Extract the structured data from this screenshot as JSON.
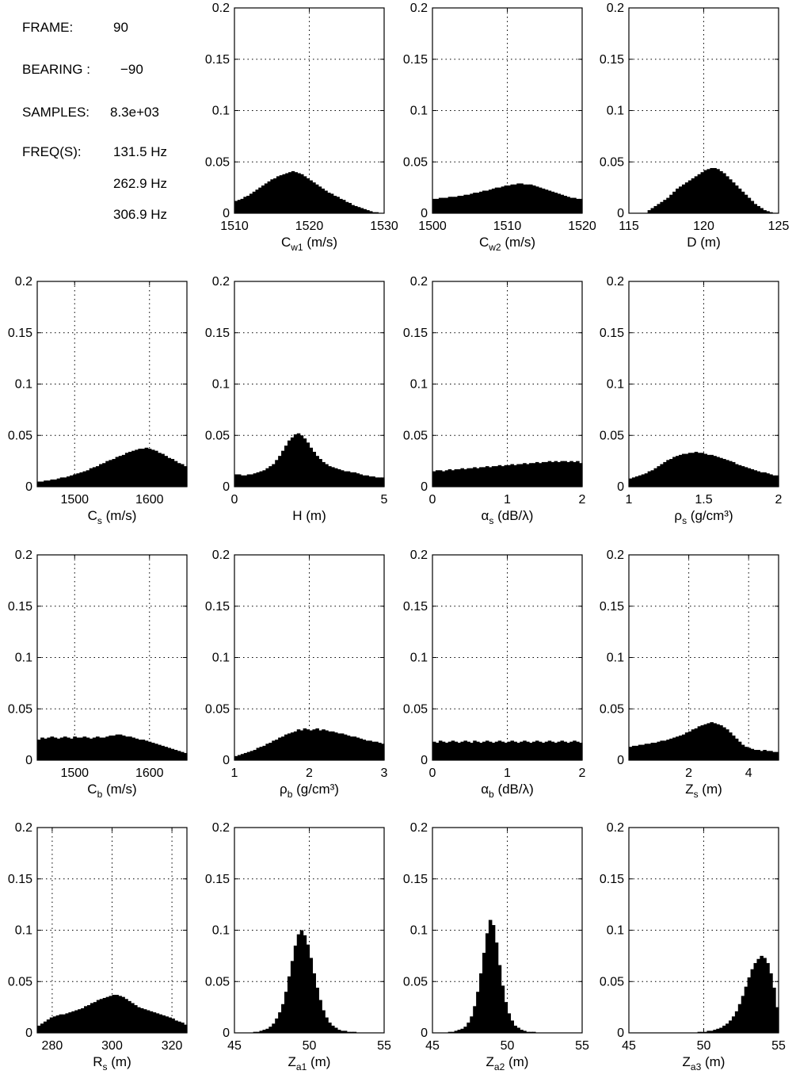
{
  "info": {
    "frame_label": "FRAME:",
    "frame_value": "90",
    "bearing_label": "BEARING :",
    "bearing_value": "−90",
    "samples_label": "SAMPLES:",
    "samples_value": "8.3e+03",
    "freq_label": "FREQ(S):",
    "freqs": [
      "131.5 Hz",
      "262.9 Hz",
      "306.9 Hz"
    ]
  },
  "chart_data": [
    {
      "type": "bar",
      "sym": "C",
      "sub": "w1",
      "sup": "",
      "unit": "(m/s)",
      "xlim": [
        1510,
        1530
      ],
      "xticks": [
        1510,
        1520,
        1530
      ],
      "ylim": [
        0,
        0.2
      ],
      "yticks": [
        "0",
        "0.05",
        "0.1",
        "0.15",
        "0.2"
      ],
      "grid": true,
      "values": [
        0.012,
        0.013,
        0.014,
        0.016,
        0.017,
        0.019,
        0.021,
        0.023,
        0.025,
        0.027,
        0.029,
        0.031,
        0.033,
        0.034,
        0.036,
        0.037,
        0.038,
        0.039,
        0.04,
        0.041,
        0.04,
        0.039,
        0.038,
        0.036,
        0.034,
        0.032,
        0.03,
        0.028,
        0.026,
        0.024,
        0.022,
        0.02,
        0.019,
        0.017,
        0.016,
        0.014,
        0.013,
        0.011,
        0.01,
        0.008,
        0.007,
        0.006,
        0.005,
        0.004,
        0.003,
        0.002,
        0.001,
        0.001,
        0.0,
        0.0
      ]
    },
    {
      "type": "bar",
      "sym": "C",
      "sub": "w2",
      "sup": "",
      "unit": "(m/s)",
      "xlim": [
        1500,
        1520
      ],
      "xticks": [
        1500,
        1510,
        1520
      ],
      "ylim": [
        0,
        0.2
      ],
      "yticks": [
        "0",
        "0.05",
        "0.1",
        "0.15",
        "0.2"
      ],
      "grid": true,
      "values": [
        0.014,
        0.014,
        0.015,
        0.015,
        0.015,
        0.016,
        0.016,
        0.016,
        0.017,
        0.017,
        0.018,
        0.018,
        0.019,
        0.02,
        0.02,
        0.021,
        0.022,
        0.022,
        0.023,
        0.024,
        0.025,
        0.025,
        0.026,
        0.027,
        0.027,
        0.028,
        0.028,
        0.029,
        0.029,
        0.028,
        0.028,
        0.028,
        0.027,
        0.026,
        0.025,
        0.024,
        0.023,
        0.022,
        0.021,
        0.02,
        0.019,
        0.018,
        0.017,
        0.016,
        0.015,
        0.015,
        0.014,
        0.014
      ]
    },
    {
      "type": "bar",
      "sym": "D",
      "sub": "",
      "sup": "",
      "unit": "(m)",
      "xlim": [
        115,
        125
      ],
      "xticks": [
        115,
        120,
        125
      ],
      "ylim": [
        0,
        0.2
      ],
      "yticks": [
        "0",
        "0.05",
        "0.1",
        "0.15",
        "0.2"
      ],
      "grid": true,
      "values": [
        0.0,
        0.0,
        0.0,
        0.0,
        0.0,
        0.0,
        0.003,
        0.005,
        0.007,
        0.009,
        0.011,
        0.013,
        0.015,
        0.018,
        0.021,
        0.024,
        0.026,
        0.028,
        0.03,
        0.032,
        0.034,
        0.036,
        0.038,
        0.04,
        0.042,
        0.043,
        0.044,
        0.044,
        0.043,
        0.041,
        0.039,
        0.036,
        0.033,
        0.03,
        0.027,
        0.024,
        0.021,
        0.018,
        0.015,
        0.012,
        0.009,
        0.007,
        0.005,
        0.003,
        0.002,
        0.001,
        0.0,
        0.0
      ]
    },
    {
      "type": "bar",
      "sym": "C",
      "sub": "s",
      "sup": "",
      "unit": "(m/s)",
      "xlim": [
        1450,
        1650
      ],
      "xticks": [
        1500,
        1600
      ],
      "ylim": [
        0,
        0.2
      ],
      "yticks": [
        "0",
        "0.05",
        "0.1",
        "0.15",
        "0.2"
      ],
      "grid": true,
      "values": [
        0.005,
        0.005,
        0.006,
        0.006,
        0.007,
        0.007,
        0.008,
        0.009,
        0.009,
        0.01,
        0.011,
        0.012,
        0.013,
        0.014,
        0.015,
        0.016,
        0.018,
        0.019,
        0.02,
        0.022,
        0.023,
        0.025,
        0.026,
        0.027,
        0.029,
        0.03,
        0.031,
        0.033,
        0.034,
        0.035,
        0.036,
        0.037,
        0.037,
        0.038,
        0.037,
        0.036,
        0.035,
        0.033,
        0.032,
        0.03,
        0.028,
        0.027,
        0.025,
        0.023,
        0.022,
        0.02
      ]
    },
    {
      "type": "bar",
      "sym": "H",
      "sub": "",
      "sup": "",
      "unit": "(m)",
      "xlim": [
        0,
        5
      ],
      "xticks": [
        0,
        5
      ],
      "ylim": [
        0,
        0.2
      ],
      "yticks": [
        "0",
        "0.05",
        "0.1",
        "0.15",
        "0.2"
      ],
      "grid": true,
      "values": [
        0.012,
        0.012,
        0.011,
        0.011,
        0.012,
        0.012,
        0.013,
        0.014,
        0.015,
        0.016,
        0.018,
        0.02,
        0.022,
        0.026,
        0.03,
        0.035,
        0.04,
        0.045,
        0.048,
        0.051,
        0.052,
        0.05,
        0.047,
        0.043,
        0.038,
        0.034,
        0.03,
        0.027,
        0.024,
        0.022,
        0.02,
        0.019,
        0.018,
        0.017,
        0.016,
        0.015,
        0.015,
        0.014,
        0.014,
        0.013,
        0.012,
        0.011,
        0.011,
        0.01,
        0.01,
        0.009,
        0.009,
        0.009
      ]
    },
    {
      "type": "bar",
      "sym": "α",
      "sub": "s",
      "sup": "",
      "unit": "(dB/λ)",
      "xlim": [
        0,
        2
      ],
      "xticks": [
        0,
        1,
        2
      ],
      "ylim": [
        0,
        0.2
      ],
      "yticks": [
        "0",
        "0.05",
        "0.1",
        "0.15",
        "0.2"
      ],
      "grid": true,
      "values": [
        0.015,
        0.016,
        0.016,
        0.015,
        0.016,
        0.017,
        0.016,
        0.017,
        0.017,
        0.018,
        0.017,
        0.018,
        0.018,
        0.019,
        0.018,
        0.019,
        0.019,
        0.02,
        0.019,
        0.02,
        0.02,
        0.021,
        0.02,
        0.021,
        0.021,
        0.022,
        0.021,
        0.022,
        0.022,
        0.023,
        0.022,
        0.023,
        0.023,
        0.024,
        0.023,
        0.024,
        0.024,
        0.025,
        0.024,
        0.025,
        0.024,
        0.025,
        0.025,
        0.024,
        0.025,
        0.024,
        0.025,
        0.023
      ]
    },
    {
      "type": "bar",
      "sym": "ρ",
      "sub": "s",
      "sup": "",
      "unit": "(g/cm³)",
      "xlim": [
        1,
        2
      ],
      "xticks": [
        1,
        1.5,
        2
      ],
      "ylim": [
        0,
        0.2
      ],
      "yticks": [
        "0",
        "0.05",
        "0.1",
        "0.15",
        "0.2"
      ],
      "grid": true,
      "values": [
        0.008,
        0.009,
        0.01,
        0.011,
        0.012,
        0.013,
        0.015,
        0.016,
        0.018,
        0.02,
        0.022,
        0.024,
        0.026,
        0.027,
        0.029,
        0.03,
        0.031,
        0.032,
        0.032,
        0.033,
        0.033,
        0.034,
        0.033,
        0.033,
        0.032,
        0.031,
        0.031,
        0.03,
        0.029,
        0.028,
        0.027,
        0.026,
        0.025,
        0.024,
        0.022,
        0.021,
        0.02,
        0.019,
        0.018,
        0.017,
        0.016,
        0.015,
        0.014,
        0.014,
        0.013,
        0.012,
        0.011,
        0.011
      ]
    },
    {
      "type": "bar",
      "sym": "C",
      "sub": "b",
      "sup": "",
      "unit": "(m/s)",
      "xlim": [
        1450,
        1650
      ],
      "xticks": [
        1500,
        1600
      ],
      "ylim": [
        0,
        0.2
      ],
      "yticks": [
        "0",
        "0.05",
        "0.1",
        "0.15",
        "0.2"
      ],
      "grid": true,
      "values": [
        0.02,
        0.022,
        0.021,
        0.022,
        0.023,
        0.022,
        0.021,
        0.022,
        0.023,
        0.022,
        0.021,
        0.023,
        0.022,
        0.022,
        0.023,
        0.022,
        0.021,
        0.022,
        0.023,
        0.022,
        0.022,
        0.023,
        0.024,
        0.024,
        0.025,
        0.025,
        0.024,
        0.023,
        0.023,
        0.022,
        0.021,
        0.02,
        0.02,
        0.019,
        0.018,
        0.017,
        0.016,
        0.015,
        0.014,
        0.013,
        0.012,
        0.011,
        0.01,
        0.009,
        0.008,
        0.007
      ]
    },
    {
      "type": "bar",
      "sym": "ρ",
      "sub": "b",
      "sup": "",
      "unit": "(g/cm³)",
      "xlim": [
        1,
        3
      ],
      "xticks": [
        1,
        2,
        3
      ],
      "ylim": [
        0,
        0.2
      ],
      "yticks": [
        "0",
        "0.05",
        "0.1",
        "0.15",
        "0.2"
      ],
      "grid": true,
      "values": [
        0.004,
        0.005,
        0.006,
        0.007,
        0.008,
        0.009,
        0.01,
        0.012,
        0.013,
        0.014,
        0.016,
        0.017,
        0.019,
        0.02,
        0.022,
        0.023,
        0.025,
        0.026,
        0.027,
        0.028,
        0.03,
        0.029,
        0.031,
        0.03,
        0.029,
        0.03,
        0.031,
        0.029,
        0.03,
        0.029,
        0.028,
        0.028,
        0.027,
        0.026,
        0.026,
        0.025,
        0.024,
        0.023,
        0.023,
        0.022,
        0.021,
        0.02,
        0.019,
        0.019,
        0.018,
        0.018,
        0.017,
        0.016
      ]
    },
    {
      "type": "bar",
      "sym": "α",
      "sub": "b",
      "sup": "",
      "unit": "(dB/λ)",
      "xlim": [
        0,
        2
      ],
      "xticks": [
        0,
        1,
        2
      ],
      "ylim": [
        0,
        0.2
      ],
      "yticks": [
        "0",
        "0.05",
        "0.1",
        "0.15",
        "0.2"
      ],
      "grid": true,
      "values": [
        0.018,
        0.017,
        0.019,
        0.018,
        0.017,
        0.018,
        0.019,
        0.018,
        0.017,
        0.018,
        0.019,
        0.018,
        0.017,
        0.019,
        0.018,
        0.017,
        0.018,
        0.019,
        0.018,
        0.017,
        0.018,
        0.019,
        0.018,
        0.017,
        0.018,
        0.019,
        0.018,
        0.017,
        0.018,
        0.019,
        0.018,
        0.017,
        0.018,
        0.019,
        0.018,
        0.017,
        0.018,
        0.019,
        0.018,
        0.017,
        0.018,
        0.019,
        0.018,
        0.017,
        0.018,
        0.019,
        0.018,
        0.017
      ]
    },
    {
      "type": "bar",
      "sym": "Z",
      "sub": "s",
      "sup": "",
      "unit": "(m)",
      "xlim": [
        0,
        5
      ],
      "xticks": [
        2,
        4
      ],
      "ylim": [
        0,
        0.2
      ],
      "yticks": [
        "0",
        "0.05",
        "0.1",
        "0.15",
        "0.2"
      ],
      "grid": true,
      "values": [
        0.013,
        0.014,
        0.014,
        0.015,
        0.015,
        0.016,
        0.016,
        0.017,
        0.017,
        0.018,
        0.019,
        0.019,
        0.02,
        0.021,
        0.022,
        0.023,
        0.024,
        0.025,
        0.027,
        0.028,
        0.03,
        0.031,
        0.033,
        0.034,
        0.035,
        0.036,
        0.037,
        0.036,
        0.035,
        0.034,
        0.032,
        0.03,
        0.027,
        0.024,
        0.021,
        0.018,
        0.015,
        0.013,
        0.012,
        0.011,
        0.01,
        0.01,
        0.009,
        0.01,
        0.009,
        0.009,
        0.008,
        0.008
      ]
    },
    {
      "type": "bar",
      "sym": "R",
      "sub": "s",
      "sup": "",
      "unit": "(m)",
      "xlim": [
        275,
        325
      ],
      "xticks": [
        280,
        300,
        320
      ],
      "ylim": [
        0,
        0.2
      ],
      "yticks": [
        "0",
        "0.05",
        "0.1",
        "0.15",
        "0.2"
      ],
      "grid": true,
      "values": [
        0.007,
        0.009,
        0.011,
        0.013,
        0.015,
        0.016,
        0.017,
        0.018,
        0.018,
        0.019,
        0.02,
        0.021,
        0.022,
        0.023,
        0.024,
        0.026,
        0.027,
        0.029,
        0.03,
        0.032,
        0.033,
        0.034,
        0.035,
        0.036,
        0.037,
        0.037,
        0.036,
        0.035,
        0.033,
        0.031,
        0.029,
        0.027,
        0.025,
        0.024,
        0.023,
        0.022,
        0.021,
        0.02,
        0.019,
        0.018,
        0.017,
        0.016,
        0.015,
        0.014,
        0.012,
        0.011,
        0.01,
        0.008
      ]
    },
    {
      "type": "bar",
      "sym": "Z",
      "sub": "a1",
      "sup": "",
      "unit": "(m)",
      "xlim": [
        45,
        55
      ],
      "xticks": [
        45,
        50,
        55
      ],
      "ylim": [
        0,
        0.2
      ],
      "yticks": [
        "0",
        "0.05",
        "0.1",
        "0.15",
        "0.2"
      ],
      "grid": true,
      "values": [
        0.0,
        0.0,
        0.0,
        0.0,
        0.0,
        0.0,
        0.001,
        0.001,
        0.002,
        0.003,
        0.004,
        0.006,
        0.009,
        0.014,
        0.02,
        0.028,
        0.04,
        0.055,
        0.07,
        0.085,
        0.096,
        0.1,
        0.095,
        0.086,
        0.073,
        0.058,
        0.044,
        0.032,
        0.022,
        0.015,
        0.01,
        0.007,
        0.005,
        0.003,
        0.002,
        0.002,
        0.001,
        0.001,
        0.001,
        0.0,
        0.0,
        0.0,
        0.0,
        0.0,
        0.0,
        0.0,
        0.0,
        0.0
      ]
    },
    {
      "type": "bar",
      "sym": "Z",
      "sub": "a2",
      "sup": "",
      "unit": "(m)",
      "xlim": [
        45,
        55
      ],
      "xticks": [
        45,
        50,
        55
      ],
      "ylim": [
        0,
        0.2
      ],
      "yticks": [
        "0",
        "0.05",
        "0.1",
        "0.15",
        "0.2"
      ],
      "grid": true,
      "values": [
        0.0,
        0.0,
        0.0,
        0.0,
        0.0,
        0.001,
        0.001,
        0.002,
        0.003,
        0.004,
        0.006,
        0.01,
        0.016,
        0.026,
        0.04,
        0.058,
        0.078,
        0.097,
        0.11,
        0.105,
        0.088,
        0.066,
        0.046,
        0.03,
        0.019,
        0.012,
        0.007,
        0.005,
        0.003,
        0.002,
        0.001,
        0.001,
        0.001,
        0.0,
        0.0,
        0.0,
        0.0,
        0.0,
        0.0,
        0.0,
        0.0,
        0.0,
        0.0,
        0.0,
        0.0,
        0.0,
        0.0,
        0.0
      ]
    },
    {
      "type": "bar",
      "sym": "Z",
      "sub": "a3",
      "sup": "",
      "unit": "(m)",
      "xlim": [
        45,
        55
      ],
      "xticks": [
        45,
        50,
        55
      ],
      "ylim": [
        0,
        0.2
      ],
      "yticks": [
        "0",
        "0.05",
        "0.1",
        "0.15",
        "0.2"
      ],
      "grid": true,
      "values": [
        0.0,
        0.0,
        0.0,
        0.0,
        0.0,
        0.0,
        0.0,
        0.0,
        0.0,
        0.0,
        0.0,
        0.0,
        0.0,
        0.0,
        0.0,
        0.0,
        0.0,
        0.0,
        0.0,
        0.0,
        0.0,
        0.0,
        0.001,
        0.001,
        0.001,
        0.002,
        0.002,
        0.003,
        0.004,
        0.005,
        0.007,
        0.009,
        0.012,
        0.016,
        0.021,
        0.028,
        0.036,
        0.045,
        0.054,
        0.062,
        0.068,
        0.072,
        0.075,
        0.073,
        0.068,
        0.058,
        0.044,
        0.025
      ]
    }
  ]
}
